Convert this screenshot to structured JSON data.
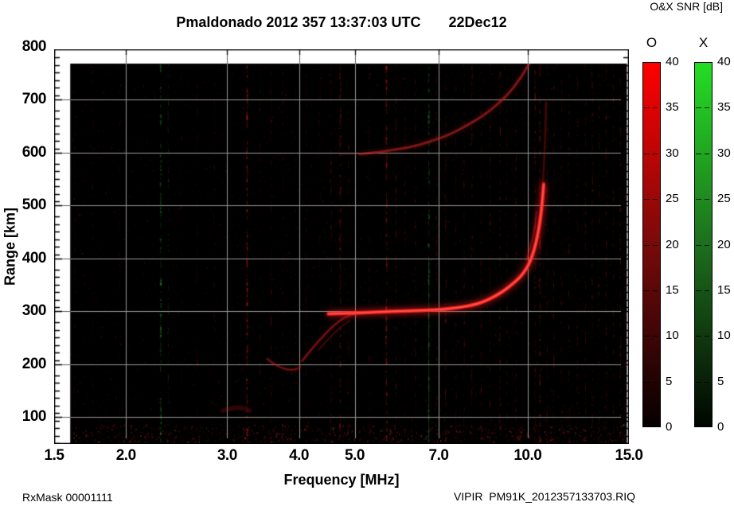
{
  "header": {
    "title": "Pmaldonado 2012 357 13:37:03 UTC       22Dec12",
    "snr_label": "O&X SNR [dB]"
  },
  "footer": {
    "left": "RxMask 00001111",
    "right": "VIPIR  PM91K_2012357133703.RIQ"
  },
  "colorbars": [
    {
      "id": "o",
      "label": "O",
      "top_color": "#ff0000",
      "mid_color": "#780a0a",
      "bottom_color": "#050000",
      "tick_labels": [
        "40",
        "35",
        "30",
        "25",
        "20",
        "15",
        "10",
        "5",
        "0"
      ]
    },
    {
      "id": "x",
      "label": "X",
      "top_color": "#24dd24",
      "mid_color": "#1e6e1e",
      "bottom_color": "#000500",
      "tick_labels": [
        "40",
        "35",
        "30",
        "25",
        "20",
        "15",
        "10",
        "5",
        "0"
      ]
    }
  ],
  "chart_data": {
    "type": "heatmap",
    "title": "Pmaldonado 2012 357 13:37:03 UTC       22Dec12",
    "xlabel": "Frequency [MHz]",
    "ylabel": "Range [km]",
    "x_scale": "log",
    "xlim": [
      1.5,
      15
    ],
    "ylim": [
      49,
      795
    ],
    "x_ticks": [
      {
        "value": 1.5,
        "label": "1.5"
      },
      {
        "value": 2,
        "label": "2.0"
      },
      {
        "value": 3,
        "label": "3.0"
      },
      {
        "value": 4,
        "label": "4.0"
      },
      {
        "value": 5,
        "label": "5.0"
      },
      {
        "value": 7,
        "label": "7.0"
      },
      {
        "value": 10,
        "label": "10.0"
      },
      {
        "value": 15,
        "label": "15.0"
      }
    ],
    "y_ticks": [
      {
        "value": 100,
        "label": "100"
      },
      {
        "value": 200,
        "label": "200"
      },
      {
        "value": 300,
        "label": "300"
      },
      {
        "value": 400,
        "label": "400"
      },
      {
        "value": 500,
        "label": "500"
      },
      {
        "value": 600,
        "label": "600"
      },
      {
        "value": 700,
        "label": "700"
      },
      {
        "value": 800,
        "label": "800"
      }
    ],
    "x_gridlines": [
      2,
      3,
      4,
      5,
      7,
      10
    ],
    "y_gridlines": [
      100,
      200,
      300,
      400,
      500,
      600,
      700
    ],
    "y_minor_tick_km": 14.3,
    "grid": true,
    "bg_color": "#000000",
    "grid_color_on_data": "#989898",
    "grid_color_on_margin": "#5f5f5f",
    "data_extent": {
      "f_min": 1.6,
      "f_max": 14.93,
      "range_min": 50,
      "range_max": 768
    },
    "colorbar_range_db": [
      0,
      40
    ],
    "traces": [
      {
        "name": "E-F cusp dip O-mode",
        "color": "#c81e1e",
        "alpha": 0.45,
        "width": 2.5,
        "glow": 4,
        "points": [
          [
            3.52,
            210
          ],
          [
            3.62,
            200
          ],
          [
            3.74,
            192
          ],
          [
            3.86,
            189
          ],
          [
            3.96,
            190
          ],
          [
            4.02,
            194
          ]
        ]
      },
      {
        "name": "F rise O-mode",
        "color": "#c81e1e",
        "alpha": 0.5,
        "width": 2.5,
        "glow": 4,
        "points": [
          [
            4.05,
            206
          ],
          [
            4.18,
            224
          ],
          [
            4.32,
            243
          ],
          [
            4.48,
            261
          ],
          [
            4.62,
            275
          ],
          [
            4.78,
            287
          ],
          [
            4.95,
            294
          ],
          [
            5.15,
            297
          ]
        ]
      },
      {
        "name": "F rise X-mode faint",
        "color": "#b41919",
        "alpha": 0.3,
        "width": 2,
        "glow": 3,
        "points": [
          [
            4.32,
            226
          ],
          [
            4.46,
            243
          ],
          [
            4.6,
            258
          ],
          [
            4.74,
            271
          ],
          [
            4.9,
            282
          ]
        ]
      },
      {
        "name": "F2 O-mode main",
        "color": "#ff2222",
        "alpha": 0.95,
        "width": 4.5,
        "glow": 9,
        "bright_core": true,
        "points": [
          [
            4.5,
            295
          ],
          [
            4.8,
            296
          ],
          [
            5.2,
            297
          ],
          [
            5.6,
            299
          ],
          [
            6.0,
            300
          ],
          [
            6.4,
            301
          ],
          [
            6.8,
            302
          ],
          [
            7.2,
            304
          ],
          [
            7.6,
            307
          ],
          [
            8.0,
            311
          ],
          [
            8.4,
            318
          ],
          [
            8.8,
            329
          ],
          [
            9.1,
            339
          ],
          [
            9.4,
            351
          ],
          [
            9.7,
            364
          ],
          [
            9.95,
            380
          ],
          [
            10.12,
            396
          ],
          [
            10.27,
            417
          ],
          [
            10.4,
            442
          ],
          [
            10.5,
            468
          ],
          [
            10.57,
            493
          ],
          [
            10.62,
            517
          ],
          [
            10.66,
            540
          ]
        ]
      },
      {
        "name": "F2 asymptote upper faint",
        "color": "#c01c1c",
        "alpha": 0.3,
        "width": 2.5,
        "glow": 4,
        "points": [
          [
            10.62,
            540
          ],
          [
            10.67,
            575
          ],
          [
            10.71,
            615
          ],
          [
            10.74,
            655
          ],
          [
            10.76,
            695
          ]
        ]
      },
      {
        "name": "F2 X-branch faint",
        "color": "#c01c1c",
        "alpha": 0.4,
        "width": 2,
        "glow": 3,
        "points": [
          [
            9.95,
            397
          ],
          [
            10.06,
            413
          ],
          [
            10.16,
            430
          ],
          [
            10.24,
            448
          ],
          [
            10.31,
            468
          ],
          [
            10.35,
            488
          ]
        ]
      },
      {
        "name": "second hop 2F",
        "color": "#d02525",
        "alpha": 0.55,
        "width": 3,
        "glow": 6,
        "points": [
          [
            5.1,
            597
          ],
          [
            5.4,
            600
          ],
          [
            5.7,
            603
          ],
          [
            6.0,
            607
          ],
          [
            6.3,
            611
          ],
          [
            6.6,
            617
          ],
          [
            6.9,
            624
          ],
          [
            7.2,
            631
          ],
          [
            7.5,
            640
          ],
          [
            7.8,
            650
          ],
          [
            8.1,
            660
          ],
          [
            8.4,
            671
          ],
          [
            8.7,
            684
          ],
          [
            9.0,
            698
          ],
          [
            9.25,
            711
          ],
          [
            9.5,
            726
          ],
          [
            9.7,
            740
          ],
          [
            9.9,
            755
          ],
          [
            10.05,
            768
          ]
        ]
      },
      {
        "name": "second hop lead faint",
        "color": "#b41919",
        "alpha": 0.2,
        "width": 2,
        "glow": 3,
        "points": [
          [
            4.7,
            596
          ],
          [
            5.1,
            597
          ]
        ]
      },
      {
        "name": "E-region diffuse echo",
        "color": "#b41919",
        "alpha": 0.22,
        "width": 6,
        "glow": 9,
        "points": [
          [
            2.95,
            112
          ],
          [
            3.05,
            117
          ],
          [
            3.18,
            118
          ],
          [
            3.28,
            112
          ]
        ]
      }
    ],
    "noise": {
      "seed": 1337,
      "speckle_count": 3200,
      "bottom_band": {
        "range_max_km": 85,
        "extra_count": 900
      },
      "streaks": [
        {
          "f": 1.63,
          "color": "red",
          "strength": 0.2
        },
        {
          "f": 1.75,
          "color": "red",
          "strength": 0.22
        },
        {
          "f": 1.95,
          "color": "red",
          "strength": 0.18
        },
        {
          "f": 2.3,
          "color": "green",
          "strength": 0.5
        },
        {
          "f": 2.37,
          "color": "green",
          "strength": 0.3
        },
        {
          "f": 2.5,
          "color": "red",
          "strength": 0.18
        },
        {
          "f": 2.66,
          "color": "red",
          "strength": 0.22
        },
        {
          "f": 2.85,
          "color": "red",
          "strength": 0.2
        },
        {
          "f": 3.25,
          "color": "red",
          "strength": 0.55
        },
        {
          "f": 3.42,
          "color": "red",
          "strength": 0.25
        },
        {
          "f": 3.58,
          "color": "red",
          "strength": 0.3
        },
        {
          "f": 3.75,
          "color": "red",
          "strength": 0.25
        },
        {
          "f": 3.95,
          "color": "red",
          "strength": 0.2
        },
        {
          "f": 4.12,
          "color": "red",
          "strength": 0.25
        },
        {
          "f": 4.35,
          "color": "red",
          "strength": 0.2
        },
        {
          "f": 4.55,
          "color": "red",
          "strength": 0.32
        },
        {
          "f": 4.72,
          "color": "red",
          "strength": 0.42
        },
        {
          "f": 4.88,
          "color": "red",
          "strength": 0.28
        },
        {
          "f": 5.05,
          "color": "green",
          "strength": 0.15
        },
        {
          "f": 5.3,
          "color": "red",
          "strength": 0.25
        },
        {
          "f": 5.68,
          "color": "red",
          "strength": 0.5
        },
        {
          "f": 5.9,
          "color": "red",
          "strength": 0.35
        },
        {
          "f": 6.12,
          "color": "red",
          "strength": 0.25
        },
        {
          "f": 6.38,
          "color": "red",
          "strength": 0.3
        },
        {
          "f": 6.73,
          "color": "green",
          "strength": 0.45,
          "solid_range": [
            55,
            400
          ]
        },
        {
          "f": 6.95,
          "color": "red",
          "strength": 0.3
        },
        {
          "f": 7.2,
          "color": "red",
          "strength": 0.35
        },
        {
          "f": 7.5,
          "color": "red",
          "strength": 0.25
        },
        {
          "f": 7.75,
          "color": "red",
          "strength": 0.3
        },
        {
          "f": 8.0,
          "color": "red",
          "strength": 0.33
        },
        {
          "f": 8.3,
          "color": "red",
          "strength": 0.3
        },
        {
          "f": 8.6,
          "color": "red",
          "strength": 0.33
        },
        {
          "f": 8.95,
          "color": "red",
          "strength": 0.35
        },
        {
          "f": 9.2,
          "color": "red",
          "strength": 0.28
        },
        {
          "f": 9.55,
          "color": "red",
          "strength": 0.3
        },
        {
          "f": 10.3,
          "color": "red",
          "strength": 0.4
        },
        {
          "f": 10.5,
          "color": "red",
          "strength": 0.42
        },
        {
          "f": 10.8,
          "color": "red",
          "strength": 0.3
        },
        {
          "f": 11.1,
          "color": "red",
          "strength": 0.3
        },
        {
          "f": 11.45,
          "color": "red",
          "strength": 0.26
        },
        {
          "f": 11.8,
          "color": "red",
          "strength": 0.3
        },
        {
          "f": 12.2,
          "color": "red",
          "strength": 0.26
        },
        {
          "f": 12.6,
          "color": "red",
          "strength": 0.3
        },
        {
          "f": 12.95,
          "color": "red",
          "strength": 0.34
        },
        {
          "f": 13.3,
          "color": "red",
          "strength": 0.3
        },
        {
          "f": 13.7,
          "color": "red",
          "strength": 0.34
        },
        {
          "f": 14.1,
          "color": "red",
          "strength": 0.3
        },
        {
          "f": 14.5,
          "color": "red",
          "strength": 0.34
        },
        {
          "f": 14.8,
          "color": "red",
          "strength": 0.3
        }
      ]
    }
  }
}
